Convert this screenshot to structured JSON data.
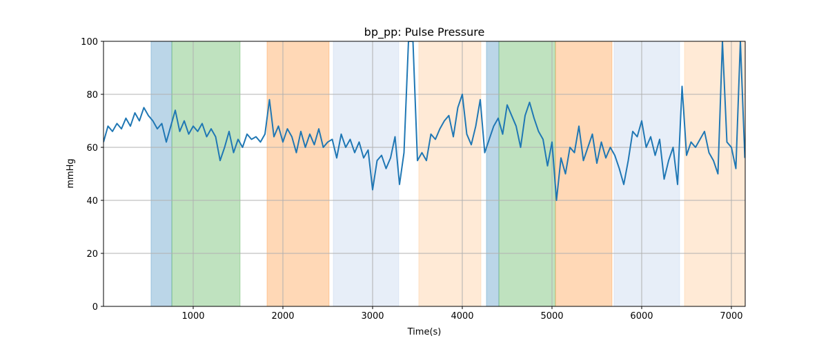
{
  "chart_data": {
    "type": "line",
    "title": "bp_pp: Pulse Pressure",
    "xlabel": "Time(s)",
    "ylabel": "mmHg",
    "xlim": [
      0,
      7154
    ],
    "ylim": [
      0,
      100
    ],
    "xticks": [
      1000,
      2000,
      3000,
      4000,
      5000,
      6000,
      7000
    ],
    "yticks": [
      0,
      20,
      40,
      60,
      80,
      100
    ],
    "grid": true,
    "line_color": "#1f77b4",
    "spans": [
      {
        "start": 530,
        "end": 762,
        "color": "#1f77b4"
      },
      {
        "start": 762,
        "end": 1523,
        "color": "#2ca02c"
      },
      {
        "start": 1823,
        "end": 2515,
        "color": "#ff7f0e"
      },
      {
        "start": 2562,
        "end": 3292,
        "color": "#aec7e8"
      },
      {
        "start": 3515,
        "end": 4208,
        "color": "#ffbb78"
      },
      {
        "start": 4269,
        "end": 4408,
        "color": "#1f77b4"
      },
      {
        "start": 4408,
        "end": 5038,
        "color": "#2ca02c"
      },
      {
        "start": 5038,
        "end": 5669,
        "color": "#ff7f0e"
      },
      {
        "start": 5692,
        "end": 6423,
        "color": "#aec7e8"
      },
      {
        "start": 6477,
        "end": 7154,
        "color": "#ffbb78"
      }
    ],
    "series": [
      {
        "name": "bp_pp",
        "x": [
          0,
          50,
          100,
          150,
          200,
          250,
          300,
          350,
          400,
          450,
          500,
          550,
          600,
          650,
          700,
          750,
          800,
          850,
          900,
          950,
          1000,
          1050,
          1100,
          1150,
          1200,
          1250,
          1300,
          1350,
          1400,
          1450,
          1500,
          1550,
          1600,
          1650,
          1700,
          1750,
          1800,
          1850,
          1900,
          1950,
          2000,
          2050,
          2100,
          2150,
          2200,
          2250,
          2300,
          2350,
          2400,
          2450,
          2500,
          2550,
          2600,
          2650,
          2700,
          2750,
          2800,
          2850,
          2900,
          2950,
          3000,
          3050,
          3100,
          3150,
          3200,
          3250,
          3300,
          3350,
          3400,
          3450,
          3500,
          3550,
          3600,
          3650,
          3700,
          3750,
          3800,
          3850,
          3900,
          3950,
          4000,
          4050,
          4100,
          4150,
          4200,
          4250,
          4300,
          4350,
          4400,
          4450,
          4500,
          4550,
          4600,
          4650,
          4700,
          4750,
          4800,
          4850,
          4900,
          4950,
          5000,
          5050,
          5100,
          5150,
          5200,
          5250,
          5300,
          5350,
          5400,
          5450,
          5500,
          5550,
          5600,
          5650,
          5700,
          5750,
          5800,
          5850,
          5900,
          5950,
          6000,
          6050,
          6100,
          6150,
          6200,
          6250,
          6300,
          6350,
          6400,
          6450,
          6500,
          6550,
          6600,
          6650,
          6700,
          6750,
          6800,
          6850,
          6900,
          6950,
          7000,
          7050,
          7100,
          7150
        ],
        "y": [
          62,
          68,
          66,
          69,
          67,
          71,
          68,
          73,
          70,
          75,
          72,
          70,
          67,
          69,
          62,
          68,
          74,
          66,
          70,
          65,
          68,
          66,
          69,
          64,
          67,
          64,
          55,
          60,
          66,
          58,
          63,
          60,
          65,
          63,
          64,
          62,
          65,
          78,
          64,
          68,
          62,
          67,
          64,
          58,
          66,
          60,
          65,
          61,
          67,
          60,
          62,
          63,
          56,
          65,
          60,
          63,
          58,
          62,
          56,
          59,
          44,
          55,
          57,
          52,
          56,
          64,
          46,
          58,
          100,
          100,
          55,
          58,
          55,
          65,
          63,
          67,
          70,
          72,
          64,
          75,
          80,
          65,
          61,
          68,
          78,
          58,
          63,
          68,
          71,
          65,
          76,
          72,
          68,
          60,
          72,
          77,
          71,
          66,
          63,
          53,
          62,
          40,
          56,
          50,
          60,
          58,
          68,
          55,
          60,
          65,
          54,
          62,
          56,
          60,
          57,
          52,
          46,
          55,
          66,
          64,
          70,
          60,
          64,
          57,
          63,
          48,
          55,
          60,
          46,
          83,
          57,
          62,
          60,
          63,
          66,
          58,
          55,
          50,
          100,
          62,
          60,
          52,
          100,
          56
        ]
      }
    ]
  }
}
